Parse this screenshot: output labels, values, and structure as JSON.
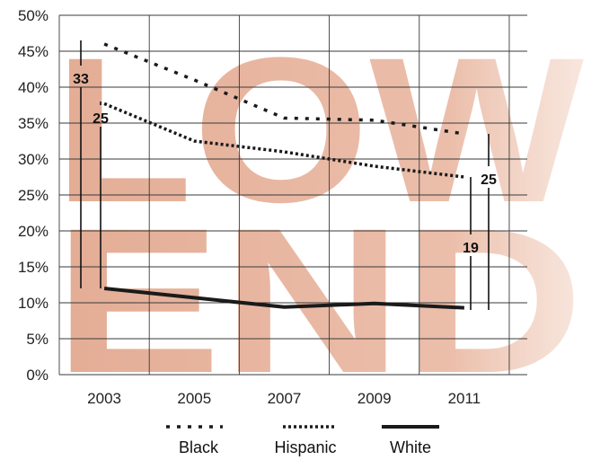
{
  "chart_data": {
    "type": "line",
    "title": "",
    "xlabel": "",
    "ylabel": "",
    "watermark": [
      "LOW",
      "END"
    ],
    "watermark_color": "#e2a88f",
    "x": [
      2003,
      2005,
      2007,
      2009,
      2011
    ],
    "x_tick_labels": [
      "2003",
      "2005",
      "2007",
      "2009",
      "2011"
    ],
    "ylim": [
      0,
      50
    ],
    "y_tick_labels": [
      "0%",
      "5%",
      "10%",
      "15%",
      "20%",
      "25%",
      "30%",
      "35%",
      "40%",
      "45%",
      "50%"
    ],
    "grid": true,
    "series": [
      {
        "name": "Black",
        "style": "dotted-spaced",
        "color": "#1a1a1a",
        "values": [
          46,
          41,
          35.7,
          35.4,
          33.5
        ]
      },
      {
        "name": "Hispanic",
        "style": "dotted",
        "color": "#1a1a1a",
        "values": [
          37.7,
          32.5,
          31,
          29,
          27.5
        ]
      },
      {
        "name": "White",
        "style": "solid",
        "color": "#1a1a1a",
        "values": [
          12,
          10.7,
          9.4,
          9.9,
          9.3
        ]
      }
    ],
    "gap_annotations": [
      {
        "label": "33",
        "year": 2003,
        "from": 12,
        "to": 46.5,
        "compare": "Black vs White"
      },
      {
        "label": "25",
        "year": 2003,
        "from": 12,
        "to": 38,
        "compare": "Hispanic vs White"
      },
      {
        "label": "19",
        "year": 2011,
        "from": 9,
        "to": 27.5,
        "compare": "Hispanic vs White"
      },
      {
        "label": "25",
        "year": 2011,
        "from": 9,
        "to": 33.5,
        "compare": "Black vs White"
      }
    ],
    "legend": {
      "placement": "bottom",
      "entries": [
        "Black",
        "Hispanic",
        "White"
      ]
    }
  }
}
